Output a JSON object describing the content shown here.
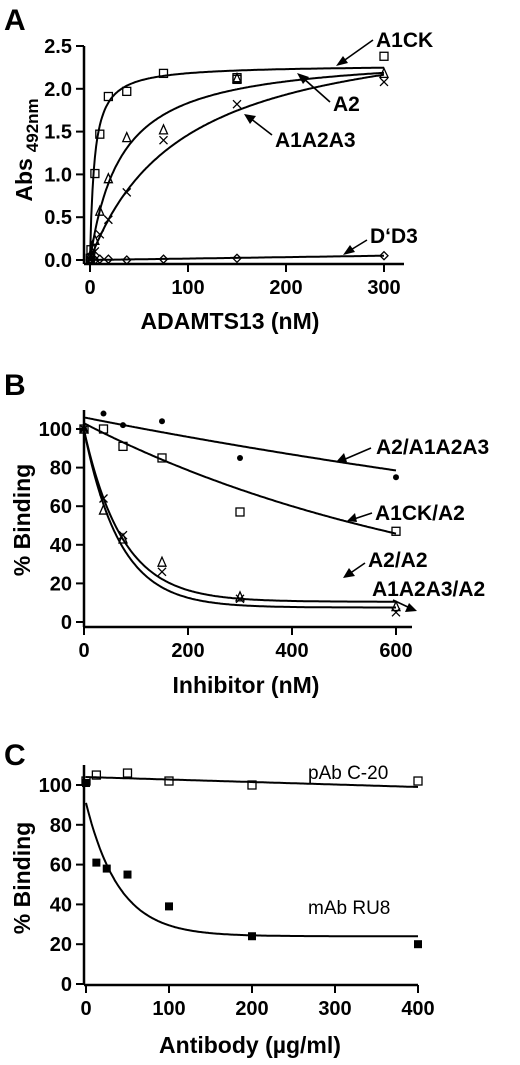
{
  "chart_data": [
    {
      "type": "scatter",
      "panel": "A",
      "xlabel": "ADAMTS13 (nM)",
      "ylabel": "Abs 492nm",
      "ylabel_main": "Abs",
      "ylabel_sub": "492nm",
      "xlim": [
        0,
        300
      ],
      "ylim": [
        0,
        2.5
      ],
      "xticks": [
        0,
        100,
        200,
        300
      ],
      "yticks": [
        0.0,
        0.5,
        1.0,
        1.5,
        2.0,
        2.5
      ],
      "ytick_labels": [
        "0.0",
        "0.5",
        "1.0",
        "1.5",
        "2.0",
        "2.5"
      ],
      "series": [
        {
          "name": "A1CK",
          "marker": "square",
          "x": [
            0.3,
            1,
            5,
            10,
            18.75,
            37.5,
            75,
            150,
            150,
            300
          ],
          "y": [
            0.02,
            0.12,
            1.01,
            1.47,
            1.91,
            1.97,
            2.18,
            2.13,
            2.11,
            2.38
          ],
          "fit": {
            "model": "hyperbolic",
            "bmax": 2.28,
            "kd": 4.5
          }
        },
        {
          "name": "A2",
          "marker": "triangle",
          "x": [
            0.3,
            1,
            5,
            10,
            18.75,
            37.5,
            75,
            150,
            300
          ],
          "y": [
            0.0,
            0.07,
            0.23,
            0.57,
            0.95,
            1.43,
            1.52,
            2.12,
            2.18
          ],
          "fit": {
            "model": "hyperbolic",
            "bmax": 2.42,
            "kd": 32
          }
        },
        {
          "name": "A1A2A3",
          "marker": "cross",
          "x": [
            0.3,
            1,
            5,
            10,
            18.75,
            37.5,
            75,
            150,
            300
          ],
          "y": [
            0.0,
            0.02,
            0.1,
            0.3,
            0.47,
            0.79,
            1.4,
            1.82,
            2.08
          ],
          "fit": {
            "model": "hyperbolic",
            "bmax": 2.85,
            "kd": 95
          }
        },
        {
          "name": "D‘D3",
          "marker": "diamond",
          "x": [
            0.3,
            5,
            10,
            18.75,
            37.5,
            75,
            150,
            300
          ],
          "y": [
            0.0,
            0.0,
            0.01,
            0.01,
            0.0,
            0.01,
            0.02,
            0.05
          ],
          "fit": {
            "model": "linear",
            "slope": 0.000167,
            "intercept": 0.0
          }
        }
      ],
      "annotations": [
        "A1CK",
        "A2",
        "A1A2A3",
        "D‘D3"
      ]
    },
    {
      "type": "scatter",
      "panel": "B",
      "xlabel": "Inhibitor (nM)",
      "ylabel": "% Binding",
      "xlim": [
        0,
        600
      ],
      "ylim": [
        0,
        110
      ],
      "xticks": [
        0,
        200,
        400,
        600
      ],
      "yticks": [
        0,
        20,
        40,
        60,
        80,
        100
      ],
      "series": [
        {
          "name": "A2/A1A2A3",
          "marker": "dot",
          "x": [
            0,
            37.5,
            75,
            150,
            300,
            600
          ],
          "y": [
            100,
            108,
            102,
            104,
            85,
            75
          ],
          "fit": {
            "model": "exp_plateau",
            "span": 100,
            "k": 0.0005,
            "plateau": 0,
            "y0": 106
          }
        },
        {
          "name": "A1CK/A2",
          "marker": "square",
          "x": [
            0,
            37.5,
            75,
            150,
            300,
            600
          ],
          "y": [
            100,
            100,
            91,
            85,
            57,
            47
          ],
          "fit": {
            "model": "exp_plateau",
            "span": 103,
            "k": 0.00135,
            "plateau": 0,
            "y0": 103
          }
        },
        {
          "name": "A2/A2",
          "marker": "triangle",
          "x": [
            0,
            37.5,
            75,
            150,
            300,
            600
          ],
          "y": [
            100,
            58,
            43,
            31,
            13,
            8
          ],
          "fit": {
            "model": "exp_plateau",
            "span": 89,
            "k": 0.0135,
            "plateau": 10.5
          }
        },
        {
          "name": "A1A2A3/A2",
          "marker": "cross",
          "x": [
            0,
            37.5,
            75,
            150,
            300,
            600
          ],
          "y": [
            100,
            64,
            45,
            26,
            12,
            5
          ],
          "fit": {
            "model": "exp_plateau",
            "span": 92,
            "k": 0.0145,
            "plateau": 7.5
          }
        }
      ],
      "annotations": [
        "A2/A1A2A3",
        "A1CK/A2",
        "A2/A2",
        "A1A2A3/A2"
      ]
    },
    {
      "type": "scatter",
      "panel": "C",
      "xlabel": "Antibody (µg/ml)",
      "ylabel": "% Binding",
      "xlim": [
        0,
        400
      ],
      "ylim": [
        0,
        110
      ],
      "xticks": [
        0,
        100,
        200,
        300,
        400
      ],
      "yticks": [
        0,
        20,
        40,
        60,
        80,
        100
      ],
      "series": [
        {
          "name": "pAb C-20",
          "marker": "square",
          "x": [
            0,
            12.5,
            50,
            100,
            200,
            400
          ],
          "y": [
            102,
            105,
            106,
            102,
            100,
            102
          ],
          "fit": {
            "model": "linear",
            "slope": -0.0125,
            "intercept": 104
          }
        },
        {
          "name": "mAb RU8",
          "marker": "filled-square",
          "x": [
            0,
            12.5,
            25,
            50,
            100,
            200,
            400
          ],
          "y": [
            101,
            61,
            58,
            55,
            39,
            24,
            20
          ],
          "fit": {
            "model": "exp_plateau",
            "span": 67,
            "k": 0.025,
            "plateau": 24
          }
        }
      ],
      "annotations": [
        "pAb C-20",
        "mAb RU8"
      ]
    }
  ]
}
